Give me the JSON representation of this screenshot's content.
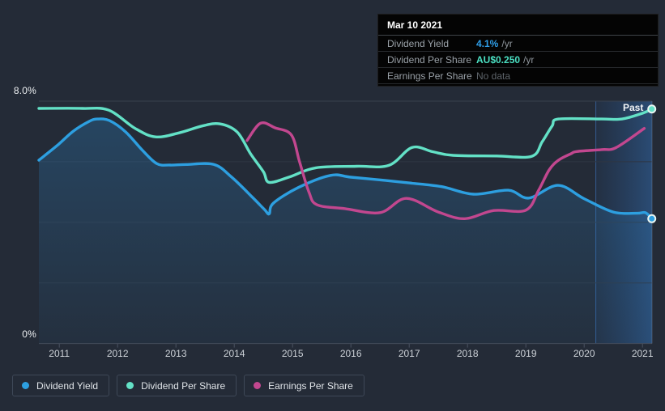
{
  "tooltip": {
    "title": "Mar 10 2021",
    "rows": [
      {
        "label": "Dividend Yield",
        "value": "4.1%",
        "suffix": "/yr",
        "value_color": "#2f9ee8",
        "bold": true
      },
      {
        "label": "Dividend Per Share",
        "value": "AU$0.250",
        "suffix": "/yr",
        "value_color": "#4be0c3",
        "bold": true
      },
      {
        "label": "Earnings Per Share",
        "value": "No data",
        "suffix": "",
        "value_color": "#5e646a",
        "bold": false
      }
    ]
  },
  "axis": {
    "y_top_label": "8.0%",
    "y_bottom_label": "0%"
  },
  "past_label": "Past",
  "legend": [
    {
      "label": "Dividend Yield",
      "color": "#2d9fe0"
    },
    {
      "label": "Dividend Per Share",
      "color": "#63e1c6"
    },
    {
      "label": "Earnings Per Share",
      "color": "#c2478f"
    }
  ],
  "colors": {
    "background": "#242b37",
    "grid_top": "#39404e",
    "grid": "#2e3643",
    "axis": "#434b5a",
    "tick": "#4a5260",
    "band_line": "rgba(64,130,215,0.55)",
    "edge_line": "rgba(170,200,230,0.25)",
    "dot_ring": "#e9f5f2"
  },
  "chart_data": {
    "type": "line",
    "title": "Dividend history chart",
    "x_axis": {
      "ticks": [
        2011,
        2012,
        2013,
        2014,
        2015,
        2016,
        2017,
        2018,
        2019,
        2020,
        2021
      ],
      "range": [
        2010.65,
        2021.17
      ]
    },
    "y_axis": {
      "labels": [
        "8.0%",
        "0%"
      ],
      "range": [
        0,
        8
      ],
      "gridline_step": 2,
      "unit": "%"
    },
    "highlight_band": {
      "start": 2020.2,
      "end": 2021.17,
      "label": "Past"
    },
    "legend_position": "bottom-left",
    "series": [
      {
        "name": "Dividend Yield",
        "color": "#2d9fe0",
        "area": true,
        "end_dot": true,
        "points": [
          [
            2010.65,
            6.05
          ],
          [
            2010.96,
            6.53
          ],
          [
            2011.24,
            7.01
          ],
          [
            2011.51,
            7.33
          ],
          [
            2011.65,
            7.41
          ],
          [
            2011.86,
            7.36
          ],
          [
            2012.14,
            6.98
          ],
          [
            2012.42,
            6.39
          ],
          [
            2012.67,
            5.94
          ],
          [
            2012.9,
            5.89
          ],
          [
            2013.18,
            5.91
          ],
          [
            2013.65,
            5.91
          ],
          [
            2013.95,
            5.5
          ],
          [
            2014.3,
            4.85
          ],
          [
            2014.52,
            4.42
          ],
          [
            2014.6,
            4.28
          ],
          [
            2014.67,
            4.63
          ],
          [
            2015.1,
            5.15
          ],
          [
            2015.65,
            5.55
          ],
          [
            2016.0,
            5.49
          ],
          [
            2016.6,
            5.38
          ],
          [
            2017.0,
            5.3
          ],
          [
            2017.55,
            5.18
          ],
          [
            2018.1,
            4.93
          ],
          [
            2018.7,
            5.06
          ],
          [
            2019.05,
            4.8
          ],
          [
            2019.55,
            5.22
          ],
          [
            2020.0,
            4.78
          ],
          [
            2020.5,
            4.34
          ],
          [
            2020.9,
            4.3
          ],
          [
            2021.05,
            4.32
          ],
          [
            2021.16,
            4.12
          ]
        ]
      },
      {
        "name": "Dividend Per Share",
        "color": "#63e1c6",
        "area": false,
        "end_dot": true,
        "points": [
          [
            2010.65,
            7.76
          ],
          [
            2011.4,
            7.76
          ],
          [
            2011.85,
            7.7
          ],
          [
            2012.3,
            7.1
          ],
          [
            2012.65,
            6.82
          ],
          [
            2013.05,
            6.95
          ],
          [
            2013.45,
            7.18
          ],
          [
            2013.75,
            7.25
          ],
          [
            2014.05,
            6.98
          ],
          [
            2014.28,
            6.26
          ],
          [
            2014.5,
            5.67
          ],
          [
            2014.6,
            5.32
          ],
          [
            2014.95,
            5.5
          ],
          [
            2015.4,
            5.8
          ],
          [
            2016.1,
            5.85
          ],
          [
            2016.65,
            5.88
          ],
          [
            2017.05,
            6.47
          ],
          [
            2017.4,
            6.33
          ],
          [
            2017.75,
            6.21
          ],
          [
            2018.5,
            6.19
          ],
          [
            2019.1,
            6.18
          ],
          [
            2019.28,
            6.66
          ],
          [
            2019.45,
            7.18
          ],
          [
            2019.56,
            7.41
          ],
          [
            2020.3,
            7.41
          ],
          [
            2020.65,
            7.41
          ],
          [
            2021.0,
            7.6
          ],
          [
            2021.16,
            7.74
          ]
        ]
      },
      {
        "name": "Earnings Per Share",
        "color": "#c2478f",
        "area": false,
        "end_dot": false,
        "points": [
          [
            2014.22,
            6.7
          ],
          [
            2014.45,
            7.27
          ],
          [
            2014.7,
            7.12
          ],
          [
            2014.98,
            6.88
          ],
          [
            2015.12,
            6.0
          ],
          [
            2015.28,
            5.0
          ],
          [
            2015.42,
            4.58
          ],
          [
            2015.9,
            4.45
          ],
          [
            2016.5,
            4.32
          ],
          [
            2016.95,
            4.79
          ],
          [
            2017.5,
            4.34
          ],
          [
            2017.95,
            4.12
          ],
          [
            2018.45,
            4.39
          ],
          [
            2019.0,
            4.4
          ],
          [
            2019.22,
            5.06
          ],
          [
            2019.4,
            5.73
          ],
          [
            2019.56,
            6.05
          ],
          [
            2019.77,
            6.26
          ],
          [
            2019.88,
            6.34
          ],
          [
            2020.3,
            6.4
          ],
          [
            2020.55,
            6.47
          ],
          [
            2021.03,
            7.1
          ]
        ]
      }
    ]
  }
}
